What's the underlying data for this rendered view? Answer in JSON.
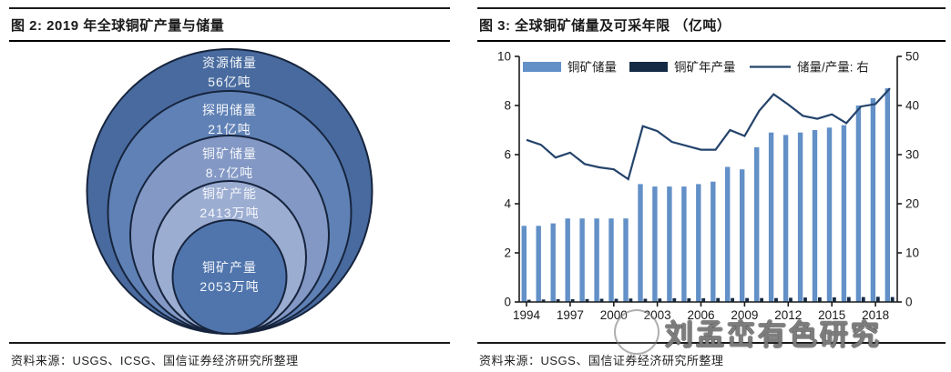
{
  "panels": {
    "left": {
      "title": "图 2: 2019 年全球铜矿产量与储量",
      "source": "资料来源：USGS、ICSG、国信证券经济研究所整理"
    },
    "right": {
      "title": "图 3: 全球铜矿储量及可采年限 （亿吨）",
      "source": "资料来源：USGS、国信证券经济研究所整理",
      "watermark": "刘孟峦有色研究"
    }
  },
  "chart_data": [
    {
      "type": "nested_circles",
      "title": "2019 年全球铜矿产量与储量",
      "items": [
        {
          "label": "资源储量",
          "value": "56亿吨",
          "color": "#486a9e"
        },
        {
          "label": "探明储量",
          "value": "21亿吨",
          "color": "#5f81b5"
        },
        {
          "label": "铜矿储量",
          "value": "8.7亿吨",
          "color": "#8398c4"
        },
        {
          "label": "铜矿产能",
          "value": "2413万吨",
          "color": "#9cadd2"
        },
        {
          "label": "铜矿产量",
          "value": "2053万吨",
          "color": "#5075ad"
        }
      ]
    },
    {
      "type": "bar",
      "title": "全球铜矿储量及可采年限 （亿吨）",
      "categories": [
        "1994",
        "1995",
        "1996",
        "1997",
        "1998",
        "1999",
        "2000",
        "2001",
        "2002",
        "2003",
        "2004",
        "2005",
        "2006",
        "2007",
        "2008",
        "2009",
        "2010",
        "2011",
        "2012",
        "2013",
        "2014",
        "2015",
        "2016",
        "2017",
        "2018",
        "2019"
      ],
      "series": [
        {
          "name": "铜矿储量",
          "kind": "bar",
          "axis": "left",
          "color": "#6290c7",
          "values": [
            3.1,
            3.1,
            3.2,
            3.4,
            3.4,
            3.4,
            3.4,
            3.4,
            4.8,
            4.7,
            4.7,
            4.7,
            4.8,
            4.9,
            5.5,
            5.4,
            6.3,
            6.9,
            6.8,
            6.9,
            7.0,
            7.1,
            7.2,
            8.0,
            8.3,
            8.7
          ]
        },
        {
          "name": "铜矿年产量",
          "kind": "bar",
          "axis": "left",
          "color": "#152a45",
          "values": [
            0.09,
            0.1,
            0.11,
            0.11,
            0.12,
            0.13,
            0.13,
            0.14,
            0.13,
            0.14,
            0.15,
            0.15,
            0.15,
            0.16,
            0.16,
            0.16,
            0.16,
            0.16,
            0.17,
            0.18,
            0.19,
            0.19,
            0.2,
            0.2,
            0.21,
            0.2
          ]
        },
        {
          "name": "储量/产量: 右",
          "kind": "line",
          "axis": "right",
          "color": "#24436b",
          "values": [
            33.0,
            32.0,
            29.4,
            30.4,
            28.1,
            27.4,
            27.0,
            25.0,
            35.8,
            34.8,
            32.6,
            31.8,
            31.0,
            31.0,
            35.0,
            33.8,
            38.9,
            42.3,
            40.2,
            37.9,
            37.3,
            38.2,
            36.4,
            39.8,
            40.3,
            43.5
          ]
        }
      ],
      "left_ylim": [
        0,
        10
      ],
      "right_ylim": [
        0,
        50
      ],
      "left_ticks": [
        "0",
        "2",
        "4",
        "6",
        "8",
        "10"
      ],
      "right_ticks": [
        "0",
        "10",
        "20",
        "30",
        "40",
        "50"
      ],
      "x_tick_every": 3,
      "grid": false,
      "legend_position": "top"
    }
  ]
}
